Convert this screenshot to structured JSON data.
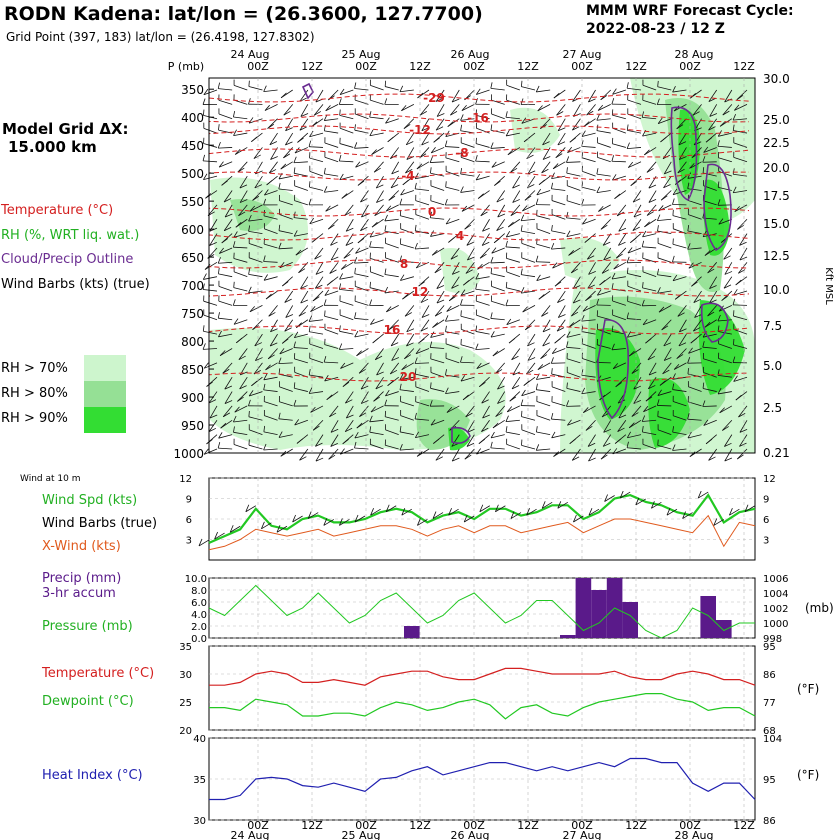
{
  "header": {
    "title": "RODN Kadena:  lat/lon = (26.3600, 127.7700)",
    "gridpoint": "Grid Point (397, 183) lat/lon = (26.4198, 127.8302)",
    "cycle_line1": "MMM WRF Forecast Cycle:",
    "cycle_line2": "2022-08-23 / 12  Z"
  },
  "left_panel": {
    "model_grid": "Model Grid ΔX:",
    "model_grid_value": "15.000 km",
    "legend_temp": "Temperature (°C)",
    "legend_rh": "RH (%, WRT liq. wat.)",
    "legend_cloud": "Cloud/Precip Outline",
    "legend_wind": "Wind Barbs (kts) (true)",
    "rh70": "RH > 70%",
    "rh80": "RH > 80%",
    "rh90": "RH > 90%",
    "wind10m": "Wind at 10 m",
    "wind_spd": "Wind Spd (kts)",
    "wind_barbs": "Wind Barbs (true)",
    "xwind": "X-Wind (kts)",
    "precip1": "Precip (mm)",
    "precip2": "3-hr accum",
    "pressure": "Pressure (mb)",
    "temperature": "Temperature (°C)",
    "dewpoint": "Dewpoint (°C)",
    "heat_index": "Heat Index (°C)"
  },
  "axes": {
    "p_label": "P (mb)",
    "kft_label": "Kft MSL",
    "mb_label": "(mb)",
    "f_label1": "(°F)",
    "f_label2": "(°F)"
  },
  "colors": {
    "temp": "#d42020",
    "rh": "#22c822",
    "cloud": "#6a2c91",
    "xwind": "#e05a1e",
    "precip": "#5a1a8a",
    "heat": "#2020b0",
    "rh70": "#cdf5cd",
    "rh80": "#95e095",
    "rh90": "#33dd33"
  },
  "chart_data": [
    {
      "type": "area",
      "title": "Time-height cross section",
      "x_top_labels": [
        "24 Aug",
        "25 Aug",
        "26 Aug",
        "27 Aug",
        "28 Aug"
      ],
      "x_hour_labels": [
        "00Z",
        "12Z",
        "00Z",
        "12Z",
        "00Z",
        "12Z",
        "00Z",
        "12Z",
        "00Z",
        "12Z"
      ],
      "pressure_levels": [
        "350",
        "400",
        "450",
        "500",
        "550",
        "600",
        "650",
        "700",
        "750",
        "800",
        "850",
        "900",
        "950",
        "1000"
      ],
      "height_kft": [
        "30.0",
        "25.0",
        "22.5",
        "20.0",
        "17.5",
        "15.0",
        "12.5",
        "10.0",
        "7.5",
        "5.0",
        "2.5",
        "0.21"
      ],
      "temperature_labels": [
        "-29",
        "-16",
        "-12",
        "-8",
        "-4",
        "0",
        "4",
        "8",
        "12",
        "16",
        "20"
      ]
    },
    {
      "type": "line",
      "title": "Wind at 10 m",
      "ylim": [
        0,
        12
      ],
      "yticks": [
        "12",
        "9",
        "6",
        "3"
      ],
      "series": [
        {
          "name": "Wind Spd (kts)",
          "values": [
            2.5,
            3.5,
            4.5,
            7.5,
            5,
            4.5,
            6,
            6.5,
            5.5,
            5.5,
            6,
            7,
            7.5,
            7,
            5.5,
            6.5,
            7,
            6,
            7.5,
            7.5,
            6.5,
            7,
            8,
            8,
            6,
            7,
            9,
            9.5,
            8.5,
            8,
            7,
            6.5,
            9.5,
            5.5,
            7,
            7.5
          ]
        },
        {
          "name": "X-Wind (kts)",
          "values": [
            1.5,
            2,
            3,
            4.5,
            4,
            3.5,
            4,
            4.5,
            3.5,
            4,
            4.5,
            5,
            5,
            4.5,
            3.5,
            4.5,
            5,
            4,
            5,
            5,
            4,
            4.5,
            5,
            5.5,
            4,
            5,
            6,
            6,
            5.5,
            5,
            4.5,
            4,
            6.5,
            2,
            5.5,
            5
          ]
        }
      ]
    },
    {
      "type": "bar",
      "title": "Precip / Pressure",
      "ylim": [
        0,
        10
      ],
      "yticks": [
        "10.0",
        "8.0",
        "6.0",
        "4.0",
        "2.0",
        "0.0"
      ],
      "pressure_ticks": [
        "1006",
        "1004",
        "1002",
        "1000",
        "998"
      ],
      "series": [
        {
          "name": "Precip (mm)",
          "values": [
            0,
            0,
            0,
            0,
            0,
            0,
            0,
            0,
            0,
            0,
            0,
            0,
            0,
            2,
            0,
            0,
            0,
            0,
            0,
            0,
            0,
            0,
            0,
            0.5,
            10,
            8,
            10,
            6,
            0,
            0,
            0,
            0,
            7,
            3,
            0,
            0
          ]
        },
        {
          "name": "Pressure (mb)",
          "values": [
            1002,
            1001,
            1003,
            1005,
            1003,
            1001,
            1002,
            1004,
            1002,
            1000,
            1001,
            1003,
            1004,
            1002,
            1000,
            1001,
            1003,
            1004,
            1002,
            1000,
            1001,
            1003,
            1003,
            1001,
            999,
            1000,
            1002,
            1001,
            999,
            998,
            999,
            1002,
            1001,
            999,
            1000,
            1000
          ]
        }
      ]
    },
    {
      "type": "line",
      "title": "Temperature / Dewpoint",
      "ylim": [
        20,
        35
      ],
      "yticks": [
        "35",
        "30",
        "25",
        "20"
      ],
      "fticks": [
        "95",
        "86",
        "77",
        "68"
      ],
      "series": [
        {
          "name": "Temperature (°C)",
          "values": [
            28,
            28,
            28.5,
            30,
            30.5,
            30,
            28.5,
            28.5,
            29,
            28.5,
            28,
            29.5,
            30,
            30.5,
            30.5,
            29.5,
            29,
            29,
            30,
            31,
            31,
            30.5,
            30,
            30,
            30,
            30,
            30.5,
            29.5,
            29,
            29,
            30,
            30.5,
            30,
            29,
            29,
            28
          ]
        },
        {
          "name": "Dewpoint (°C)",
          "values": [
            24,
            24,
            23.5,
            25.5,
            25,
            24.5,
            22.5,
            22.5,
            23,
            23,
            22.5,
            24,
            25,
            24.5,
            23.5,
            24,
            25,
            25.5,
            24.5,
            22,
            24,
            24.5,
            23,
            22.5,
            24,
            25,
            25.5,
            26,
            26.5,
            26.5,
            25.5,
            25,
            23.5,
            24,
            24,
            22.5
          ]
        }
      ]
    },
    {
      "type": "line",
      "title": "Heat Index",
      "ylim": [
        30,
        40
      ],
      "yticks": [
        "40",
        "35",
        "30"
      ],
      "fticks": [
        "104",
        "95",
        "86"
      ],
      "series": [
        {
          "name": "Heat Index (°C)",
          "values": [
            32.5,
            32.5,
            33,
            35,
            35.2,
            35,
            34.2,
            34,
            34.5,
            34,
            33.5,
            35,
            35.2,
            36,
            36.5,
            35.5,
            36,
            36.5,
            37,
            37,
            36.5,
            36,
            36.5,
            36,
            36.5,
            37,
            36.5,
            37.5,
            37.5,
            37,
            37,
            34.5,
            33.5,
            34.5,
            34.5,
            32.5
          ]
        }
      ]
    }
  ]
}
